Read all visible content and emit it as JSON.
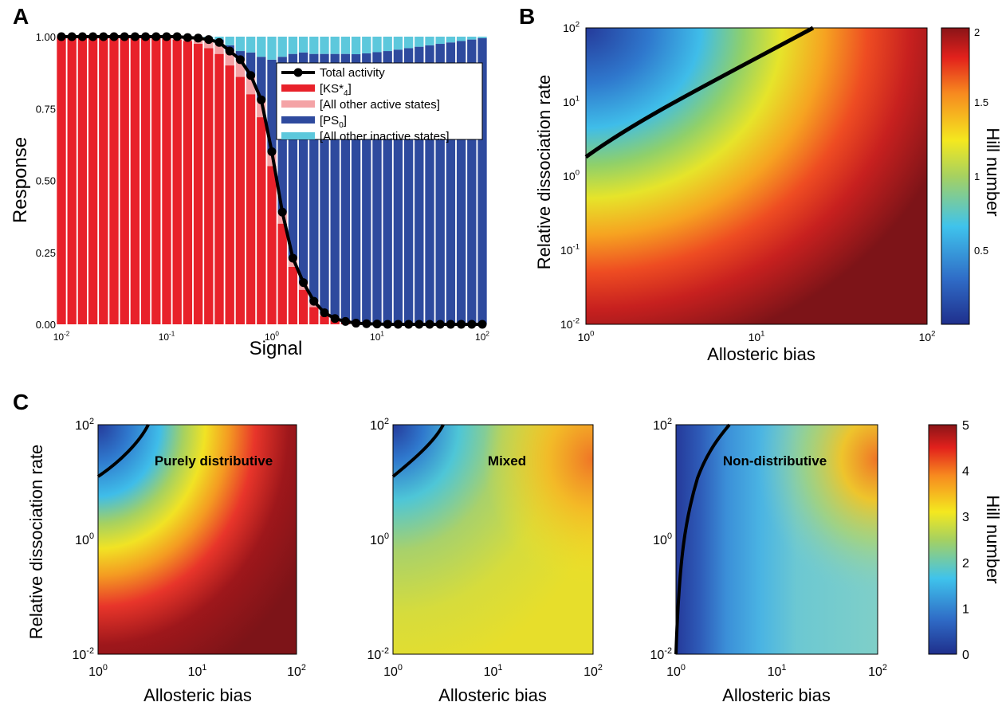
{
  "panels": {
    "A": {
      "letter": "A",
      "chart_data": {
        "type": "bar",
        "xlabel": "Signal",
        "ylabel": "Response",
        "xscale": "log",
        "xlim": [
          0.01,
          100
        ],
        "ylim": [
          0,
          1
        ],
        "x_tick_labels": [
          "10",
          "10",
          "10",
          "10",
          "10"
        ],
        "x_tick_exponents": [
          "-2",
          "-1",
          "0",
          "1",
          "2"
        ],
        "y_tick_labels": [
          "0.00",
          "0.25",
          "0.50",
          "0.75",
          "1.00"
        ],
        "y_ticks": [
          0,
          0.25,
          0.5,
          0.75,
          1.0
        ],
        "x_log10": [
          -2.0,
          -1.9,
          -1.8,
          -1.7,
          -1.6,
          -1.5,
          -1.4,
          -1.3,
          -1.2,
          -1.1,
          -1.0,
          -0.9,
          -0.8,
          -0.7,
          -0.6,
          -0.5,
          -0.4,
          -0.3,
          -0.2,
          -0.1,
          0.0,
          0.1,
          0.2,
          0.3,
          0.4,
          0.5,
          0.6,
          0.7,
          0.8,
          0.9,
          1.0,
          1.1,
          1.2,
          1.3,
          1.4,
          1.5,
          1.6,
          1.7,
          1.8,
          1.9,
          2.0
        ],
        "series": [
          {
            "name": "[KS*4]",
            "color": "#e8212a",
            "values": [
              1.0,
              1.0,
              1.0,
              1.0,
              1.0,
              1.0,
              1.0,
              1.0,
              1.0,
              1.0,
              0.995,
              0.99,
              0.985,
              0.975,
              0.96,
              0.94,
              0.9,
              0.86,
              0.8,
              0.72,
              0.55,
              0.35,
              0.2,
              0.12,
              0.06,
              0.03,
              0.015,
              0.008,
              0.004,
              0.002,
              0.001,
              0,
              0,
              0,
              0,
              0,
              0,
              0,
              0,
              0,
              0
            ]
          },
          {
            "name": "[All other active states]",
            "color": "#f4a3a6",
            "values": [
              0,
              0,
              0,
              0,
              0,
              0,
              0,
              0,
              0,
              0,
              0.005,
              0.01,
              0.012,
              0.02,
              0.03,
              0.04,
              0.05,
              0.06,
              0.065,
              0.06,
              0.05,
              0.04,
              0.03,
              0.025,
              0.02,
              0.01,
              0.005,
              0.002,
              0,
              0,
              0,
              0,
              0,
              0,
              0,
              0,
              0,
              0,
              0,
              0,
              0
            ]
          },
          {
            "name": "[PS0]",
            "color": "#2e4a9e",
            "values": [
              0,
              0,
              0,
              0,
              0,
              0,
              0,
              0,
              0,
              0,
              0,
              0,
              0,
              0,
              0,
              0.01,
              0.02,
              0.03,
              0.08,
              0.15,
              0.32,
              0.54,
              0.71,
              0.8,
              0.86,
              0.9,
              0.92,
              0.93,
              0.935,
              0.94,
              0.945,
              0.95,
              0.955,
              0.96,
              0.965,
              0.97,
              0.975,
              0.98,
              0.985,
              0.99,
              0.995
            ]
          },
          {
            "name": "[All other inactive states]",
            "color": "#5dc8dc",
            "values": [
              0,
              0,
              0,
              0,
              0,
              0,
              0,
              0,
              0,
              0,
              0,
              0,
              0.003,
              0.005,
              0.01,
              0.01,
              0.03,
              0.05,
              0.055,
              0.07,
              0.08,
              0.07,
              0.06,
              0.055,
              0.06,
              0.06,
              0.06,
              0.06,
              0.061,
              0.058,
              0.054,
              0.05,
              0.045,
              0.04,
              0.035,
              0.03,
              0.025,
              0.02,
              0.015,
              0.01,
              0.005
            ]
          },
          {
            "name": "Total activity",
            "type": "line",
            "color": "#000000",
            "values": [
              1.0,
              1.0,
              1.0,
              1.0,
              1.0,
              1.0,
              1.0,
              1.0,
              1.0,
              1.0,
              1.0,
              1.0,
              0.997,
              0.995,
              0.99,
              0.98,
              0.95,
              0.92,
              0.865,
              0.78,
              0.6,
              0.39,
              0.23,
              0.145,
              0.08,
              0.04,
              0.02,
              0.01,
              0.004,
              0.002,
              0.001,
              0,
              0,
              0,
              0,
              0,
              0,
              0,
              0,
              0,
              0
            ]
          }
        ],
        "legend": {
          "placement": "upper-right",
          "entries": [
            {
              "label": "Total activity",
              "kind": "line",
              "color": "#000000"
            },
            {
              "label": "[KS*",
              "sup": "4",
              "suffix": "]",
              "kind": "patch",
              "color": "#e8212a"
            },
            {
              "label": "[All other active states]",
              "kind": "patch",
              "color": "#f4a3a6"
            },
            {
              "label": "[PS",
              "sup": "0",
              "suffix": "]",
              "kind": "patch",
              "color": "#2e4a9e"
            },
            {
              "label": "[All other inactive states]",
              "kind": "patch",
              "color": "#5dc8dc"
            }
          ]
        }
      }
    },
    "B": {
      "letter": "B",
      "chart_data": {
        "type": "heatmap",
        "xlabel": "Allosteric bias",
        "ylabel": "Relative dissociation rate",
        "xscale": "log",
        "yscale": "log",
        "xlim": [
          1,
          100
        ],
        "ylim": [
          0.01,
          100
        ],
        "x_tick_labels": [
          "10",
          "10",
          "10"
        ],
        "x_tick_exponents": [
          "0",
          "1",
          "2"
        ],
        "y_tick_labels": [
          "10",
          "10",
          "10",
          "10",
          "10"
        ],
        "y_tick_exponents": [
          "-2",
          "-1",
          "0",
          "1",
          "2"
        ],
        "colorbar": {
          "label": "Hill number",
          "min": 0,
          "max": 2,
          "tick_labels": [
            "0.5",
            "1",
            "1.5",
            "2"
          ],
          "ticks": [
            0.5,
            1,
            1.5,
            2
          ]
        },
        "contour_line": {
          "description_value": 1,
          "points_log": [
            [
              0,
              0.25
            ],
            [
              0.4,
              0.85
            ],
            [
              0.8,
              1.35
            ],
            [
              1.32,
              2.0
            ]
          ]
        }
      }
    },
    "C": {
      "letter": "C",
      "xlabel": "Allosteric bias",
      "ylabel": "Relative dissociation rate",
      "colorbar": {
        "label": "Hill number",
        "min": 0,
        "max": 5,
        "tick_labels": [
          "0",
          "1",
          "2",
          "3",
          "4",
          "5"
        ],
        "ticks": [
          0,
          1,
          2,
          3,
          4,
          5
        ]
      },
      "chart_data": [
        {
          "type": "heatmap",
          "title": "Purely distributive",
          "xscale": "log",
          "yscale": "log",
          "xlim": [
            1,
            100
          ],
          "ylim": [
            0.01,
            100
          ],
          "x_tick_labels": [
            "10",
            "10",
            "10"
          ],
          "x_tick_exponents": [
            "0",
            "1",
            "2"
          ],
          "y_tick_labels": [
            "10",
            "10",
            "10"
          ],
          "y_tick_exponents": [
            "-2",
            "0",
            "2"
          ]
        },
        {
          "type": "heatmap",
          "title": "Mixed",
          "xscale": "log",
          "yscale": "log",
          "xlim": [
            1,
            100
          ],
          "ylim": [
            0.01,
            100
          ],
          "x_tick_labels": [
            "10",
            "10",
            "10"
          ],
          "x_tick_exponents": [
            "0",
            "1",
            "2"
          ],
          "y_tick_labels": [
            "10",
            "10",
            "10"
          ],
          "y_tick_exponents": [
            "-2",
            "0",
            "2"
          ]
        },
        {
          "type": "heatmap",
          "title": "Non-distributive",
          "xscale": "log",
          "yscale": "log",
          "xlim": [
            1,
            100
          ],
          "ylim": [
            0.01,
            100
          ],
          "x_tick_labels": [
            "10",
            "10",
            "10"
          ],
          "x_tick_exponents": [
            "0",
            "1",
            "2"
          ],
          "y_tick_labels": [
            "10",
            "10",
            "10"
          ],
          "y_tick_exponents": [
            "-2",
            "0",
            "2"
          ]
        }
      ]
    }
  }
}
